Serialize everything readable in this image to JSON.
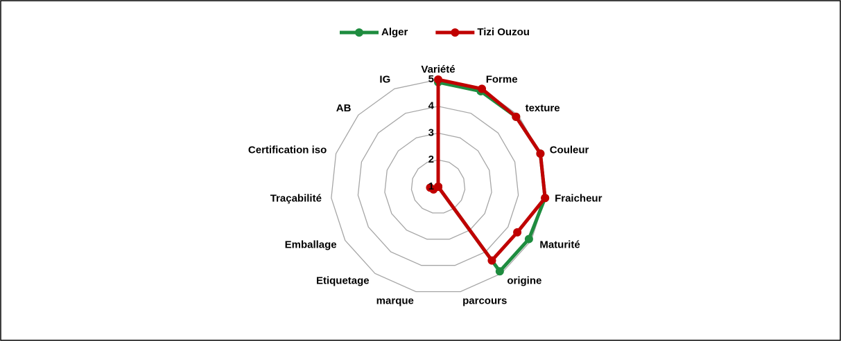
{
  "chart_data": {
    "type": "radar",
    "categories": [
      "Variété",
      "Forme",
      "texture",
      "Couleur",
      "Fraicheur",
      "Maturité",
      "origine",
      "parcours",
      "marque",
      "Etiquetage",
      "Emballage",
      "Traçabilité",
      "Certification iso",
      "AB",
      "IG"
    ],
    "series": [
      {
        "name": "Alger",
        "color": "#1e8c3f",
        "values": [
          4.9,
          4.9,
          4.9,
          5,
          5,
          4.9,
          4.9,
          1,
          1,
          1,
          1,
          1,
          1,
          1,
          1
        ]
      },
      {
        "name": "Tizi Ouzou",
        "color": "#c00000",
        "values": [
          5,
          5,
          4.9,
          5,
          5,
          4.4,
          4.4,
          1,
          1,
          1,
          1.2,
          1.3,
          1,
          1,
          1
        ]
      }
    ],
    "ylim": [
      1,
      5
    ],
    "yticks": [
      1,
      2,
      3,
      4,
      5
    ],
    "grid": true,
    "legend": "top"
  }
}
